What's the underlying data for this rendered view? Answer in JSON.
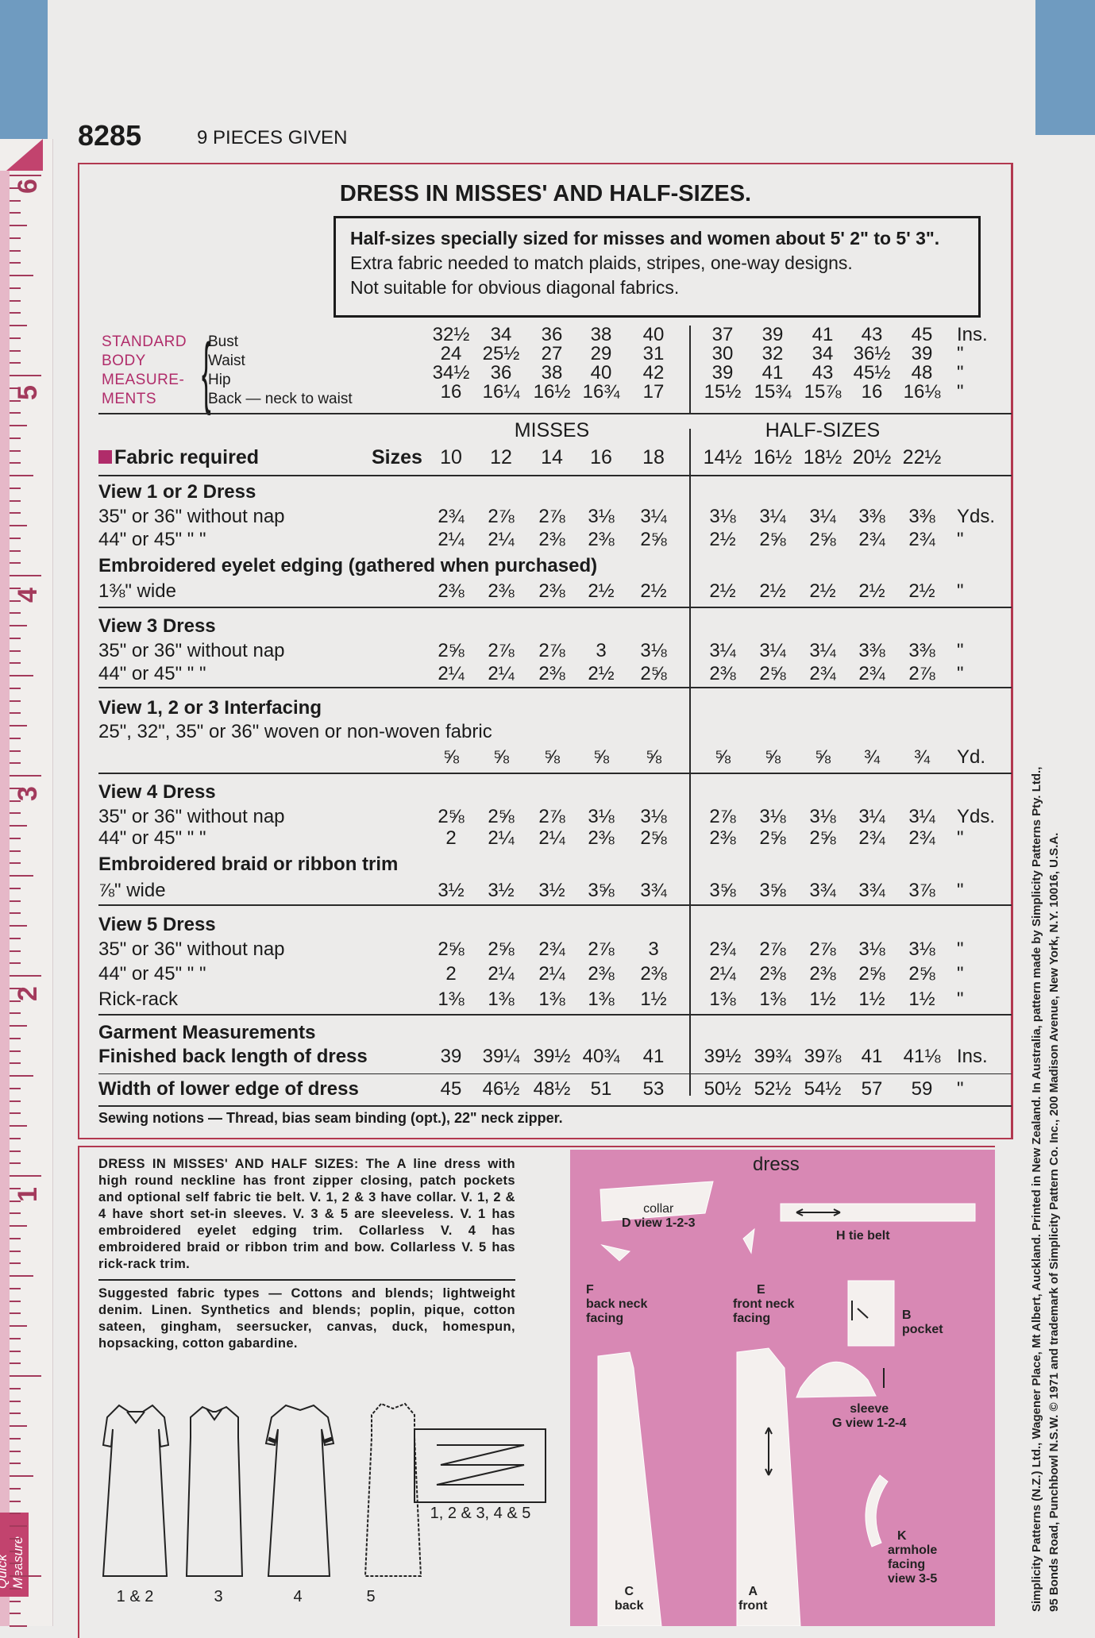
{
  "header": {
    "pattern_number": "8285",
    "pieces": "9 PIECES GIVEN"
  },
  "title": "DRESS IN MISSES' AND HALF-SIZES.",
  "info_lines": [
    "Half-sizes specially sized for misses and women about 5' 2\" to 5' 3\".",
    "Extra fabric needed to match plaids, stripes, one-way designs.",
    "Not suitable for obvious diagonal fabrics."
  ],
  "body_measurements": {
    "heading": [
      "STANDARD",
      "BODY",
      "MEASURE-",
      "MENTS"
    ],
    "rows": [
      {
        "label": "Bust",
        "misses": [
          "32½",
          "34",
          "36",
          "38",
          "40"
        ],
        "half": [
          "37",
          "39",
          "41",
          "43",
          "45"
        ],
        "unit": "Ins."
      },
      {
        "label": "Waist",
        "misses": [
          "24",
          "25½",
          "27",
          "29",
          "31"
        ],
        "half": [
          "30",
          "32",
          "34",
          "36½",
          "39"
        ],
        "unit": "\""
      },
      {
        "label": "Hip",
        "misses": [
          "34½",
          "36",
          "38",
          "40",
          "42"
        ],
        "half": [
          "39",
          "41",
          "43",
          "45½",
          "48"
        ],
        "unit": "\""
      },
      {
        "label": "Back — neck to waist",
        "misses": [
          "16",
          "16¼",
          "16½",
          "16¾",
          "17"
        ],
        "half": [
          "15½",
          "15¾",
          "15⅞",
          "16",
          "16⅛"
        ],
        "unit": "\""
      }
    ]
  },
  "sections": {
    "misses": "MISSES",
    "half": "HALF-SIZES"
  },
  "fabric": {
    "heading": "Fabric required",
    "sizes_label": "Sizes",
    "accent_color": "#b02c6a",
    "misses_sizes": [
      "10",
      "12",
      "14",
      "16",
      "18"
    ],
    "half_sizes": [
      "14½",
      "16½",
      "18½",
      "20½",
      "22½"
    ],
    "rows": [
      {
        "label": "View 1 or 2   Dress",
        "heading": true
      },
      {
        "label": "35\" or 36\" without nap",
        "misses": [
          "2¾",
          "2⅞",
          "2⅞",
          "3⅛",
          "3¼"
        ],
        "half": [
          "3⅛",
          "3¼",
          "3¼",
          "3⅜",
          "3⅜"
        ],
        "unit": "Yds."
      },
      {
        "label": "44\" or 45\"     \"      \"",
        "misses": [
          "2¼",
          "2¼",
          "2⅜",
          "2⅜",
          "2⅝"
        ],
        "half": [
          "2½",
          "2⅝",
          "2⅝",
          "2¾",
          "2¾"
        ],
        "unit": "\""
      },
      {
        "label": "Embroidered eyelet edging   (gathered when purchased)",
        "heading": true
      },
      {
        "label": "1⅜\" wide",
        "misses": [
          "2⅜",
          "2⅜",
          "2⅜",
          "2½",
          "2½"
        ],
        "half": [
          "2½",
          "2½",
          "2½",
          "2½",
          "2½"
        ],
        "unit": "\""
      },
      {
        "label": "View 3   Dress",
        "heading": true
      },
      {
        "label": "35\" or 36\" without nap",
        "misses": [
          "2⅝",
          "2⅞",
          "2⅞",
          "3",
          "3⅛"
        ],
        "half": [
          "3¼",
          "3¼",
          "3¼",
          "3⅜",
          "3⅜"
        ],
        "unit": "\""
      },
      {
        "label": "44\" or 45\"     \"      \"",
        "misses": [
          "2¼",
          "2¼",
          "2⅜",
          "2½",
          "2⅝"
        ],
        "half": [
          "2⅜",
          "2⅝",
          "2¾",
          "2¾",
          "2⅞"
        ],
        "unit": "\""
      },
      {
        "label": "View 1, 2 or 3   Interfacing",
        "heading": true
      },
      {
        "label": "25\", 32\", 35\" or 36\" woven or non-woven fabric"
      },
      {
        "label": "",
        "misses": [
          "⅝",
          "⅝",
          "⅝",
          "⅝",
          "⅝"
        ],
        "half": [
          "⅝",
          "⅝",
          "⅝",
          "¾",
          "¾"
        ],
        "unit": "Yd."
      },
      {
        "label": "View 4   Dress",
        "heading": true
      },
      {
        "label": "35\" or 36\" without nap",
        "misses": [
          "2⅝",
          "2⅝",
          "2⅞",
          "3⅛",
          "3⅛"
        ],
        "half": [
          "2⅞",
          "3⅛",
          "3⅛",
          "3¼",
          "3¼"
        ],
        "unit": "Yds."
      },
      {
        "label": "44\" or 45\"     \"      \"",
        "misses": [
          "2",
          "2¼",
          "2¼",
          "2⅜",
          "2⅝"
        ],
        "half": [
          "2⅜",
          "2⅝",
          "2⅝",
          "2¾",
          "2¾"
        ],
        "unit": "\""
      },
      {
        "label": "Embroidered braid or ribbon trim",
        "heading": true
      },
      {
        "label": "⅞\" wide",
        "misses": [
          "3½",
          "3½",
          "3½",
          "3⅝",
          "3¾"
        ],
        "half": [
          "3⅝",
          "3⅝",
          "3¾",
          "3¾",
          "3⅞"
        ],
        "unit": "\""
      },
      {
        "label": "View 5   Dress",
        "heading": true
      },
      {
        "label": "35\" or 36\" without nap",
        "misses": [
          "2⅝",
          "2⅝",
          "2¾",
          "2⅞",
          "3"
        ],
        "half": [
          "2¾",
          "2⅞",
          "2⅞",
          "3⅛",
          "3⅛"
        ],
        "unit": "\""
      },
      {
        "label": "44\" or 45\"     \"      \"",
        "misses": [
          "2",
          "2¼",
          "2¼",
          "2⅜",
          "2⅜"
        ],
        "half": [
          "2¼",
          "2⅜",
          "2⅜",
          "2⅝",
          "2⅝"
        ],
        "unit": "\""
      },
      {
        "label": "Rick-rack",
        "misses": [
          "1⅜",
          "1⅜",
          "1⅜",
          "1⅜",
          "1½"
        ],
        "half": [
          "1⅜",
          "1⅜",
          "1½",
          "1½",
          "1½"
        ],
        "unit": "\""
      },
      {
        "label": "Garment Measurements",
        "heading": true
      },
      {
        "label": "Finished back length of dress",
        "heading": true,
        "misses": [
          "39",
          "39¼",
          "39½",
          "40¾",
          "41"
        ],
        "half": [
          "39½",
          "39¾",
          "39⅞",
          "41",
          "41⅛"
        ],
        "unit": "Ins."
      },
      {
        "label": "Width of lower edge of dress",
        "heading": true,
        "misses": [
          "45",
          "46½",
          "48½",
          "51",
          "53"
        ],
        "half": [
          "50½",
          "52½",
          "54½",
          "57",
          "59"
        ],
        "unit": "\""
      }
    ]
  },
  "notions": "Sewing notions — Thread, bias seam binding (opt.), 22\" neck zipper.",
  "description": {
    "lead": "DRESS IN MISSES' AND HALF SIZES:",
    "text": "The A line dress with high round neckline has front zipper closing, patch pockets and optional self fabric tie belt. V. 1, 2 & 3 have collar. V. 1, 2 & 4 have short set-in sleeves. V. 3 & 5 are sleeveless. V. 1 has embroidered eyelet edging trim. Collarless V. 4 has embroidered braid or ribbon trim and bow. Collarless V. 5 has rick-rack trim.",
    "fabrics_lead": "Suggested fabric types —",
    "fabrics": "Cottons and blends; lightweight denim. Linen. Synthetics and blends; poplin, pique, cotton sateen, gingham, seersucker, canvas, duck, homespun, hopsacking, cotton gabardine."
  },
  "views": {
    "labels": [
      "1 & 2",
      "3",
      "4",
      "5"
    ],
    "belt_label": "1, 2 & 3, 4 & 5"
  },
  "pieces_panel": {
    "title": "dress",
    "color": "#d888b4",
    "pieces": {
      "D": [
        "D",
        "collar",
        "view 1-2-3"
      ],
      "H": [
        "H",
        "tie belt"
      ],
      "F": [
        "F",
        "back neck",
        "facing"
      ],
      "E": [
        "E",
        "front neck",
        "facing"
      ],
      "B": [
        "B",
        "pocket"
      ],
      "G": [
        "G",
        "sleeve",
        "view 1-2-4"
      ],
      "C": [
        "C",
        "back"
      ],
      "A": [
        "A",
        "front"
      ],
      "K": [
        "K",
        "armhole",
        "facing",
        "view 3-5"
      ]
    }
  },
  "ruler": {
    "numbers": [
      "6",
      "5",
      "4",
      "3",
      "2",
      "1"
    ],
    "label": "Quick Measure",
    "accent_color": "#c2436e"
  },
  "imprint": [
    "Simplicity Patterns (N.Z.) Ltd., Wagener Place, Mt Albert, Auckland. Printed in New Zealand. In Australia, pattern made by Simplicity Patterns Pty. Ltd.,",
    "95 Bonds Road, Punchbowl N.S.W.     © 1971 and trademark of Simplicity Pattern Co. Inc., 200 Madison Avenue, New York, N.Y. 10016, U.S.A."
  ]
}
